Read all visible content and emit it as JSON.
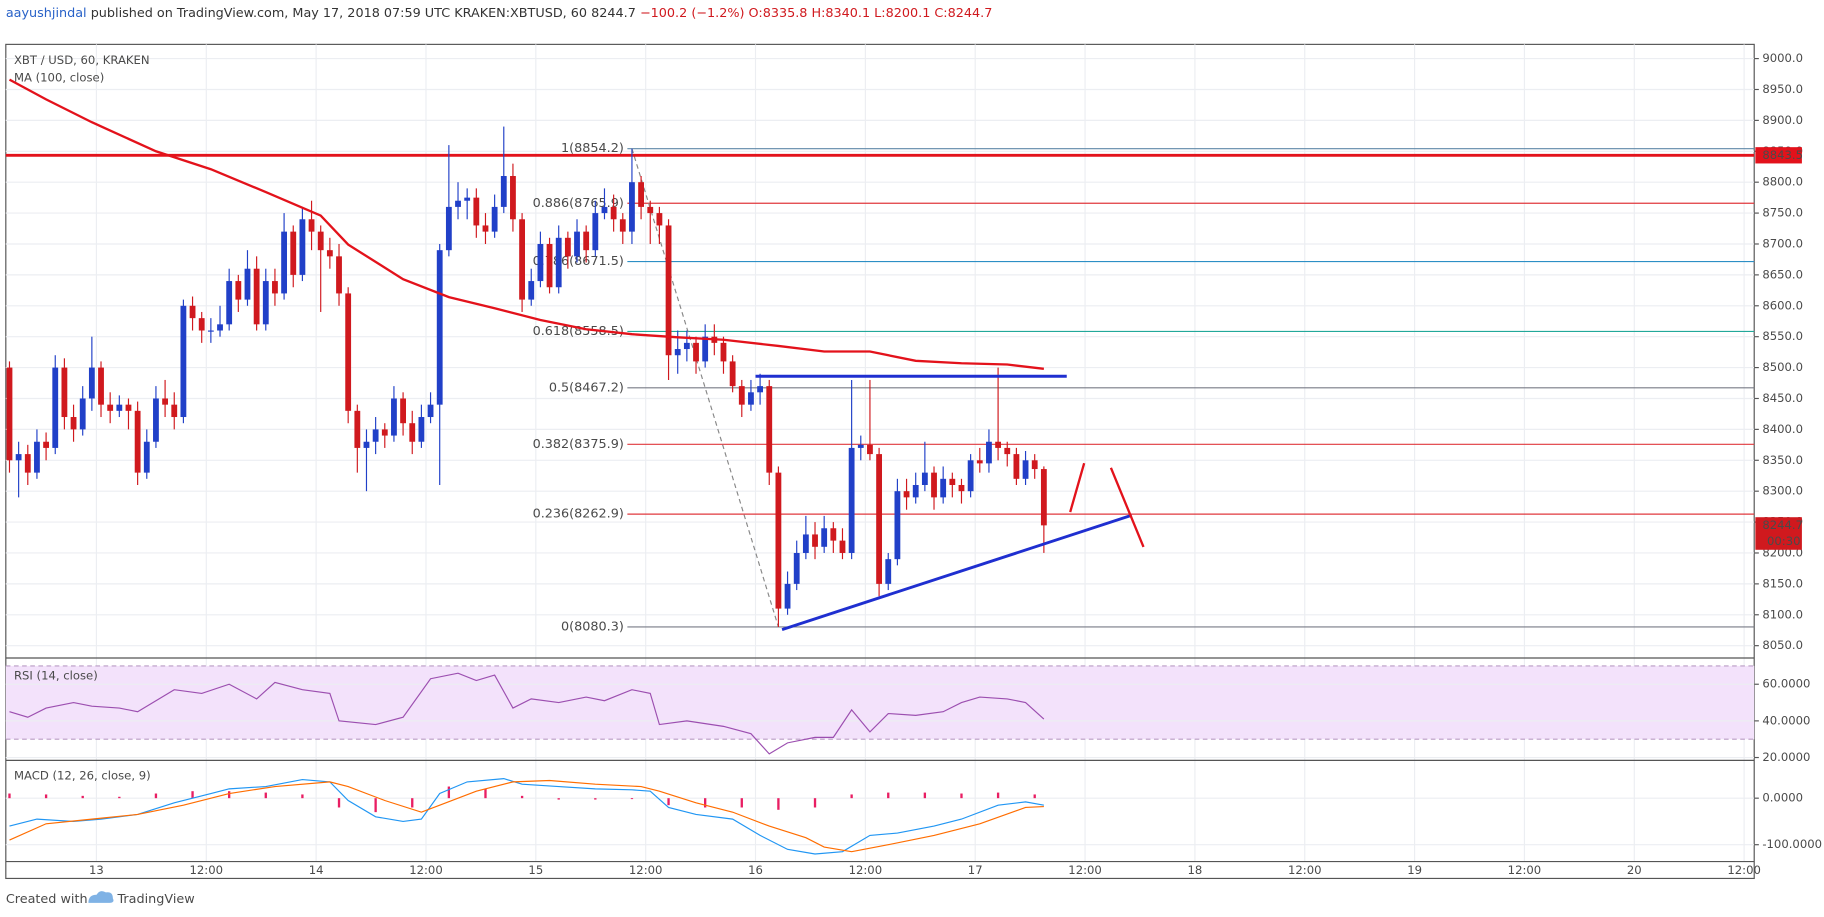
{
  "header": {
    "author": "aayushjindal",
    "published": "published on TradingView.com, May 17, 2018 07:59 UTC",
    "symbol": "KRAKEN:XBTUSD, 60",
    "last": "8244.7",
    "change": "−100.2 (−1.2%)",
    "ohlc": "O:8335.8 H:8340.1 L:8200.1 C:8244.7"
  },
  "footer": {
    "created": "Created with",
    "brand": "TradingView"
  },
  "chart_data": {
    "type": "candlestick",
    "title": "XBT / USD, 60, KRAKEN",
    "colors": {
      "up": "#2140c8",
      "down": "#d0191e"
    },
    "ohlc": [
      [
        8500,
        8510,
        8330,
        8350
      ],
      [
        8350,
        8380,
        8290,
        8360
      ],
      [
        8360,
        8375,
        8310,
        8330
      ],
      [
        8330,
        8400,
        8320,
        8380
      ],
      [
        8380,
        8395,
        8350,
        8370
      ],
      [
        8370,
        8520,
        8360,
        8500
      ],
      [
        8500,
        8515,
        8400,
        8420
      ],
      [
        8420,
        8440,
        8380,
        8400
      ],
      [
        8400,
        8470,
        8390,
        8450
      ],
      [
        8450,
        8550,
        8430,
        8500
      ],
      [
        8500,
        8510,
        8420,
        8440
      ],
      [
        8440,
        8460,
        8410,
        8430
      ],
      [
        8430,
        8455,
        8420,
        8440
      ],
      [
        8440,
        8450,
        8400,
        8430
      ],
      [
        8430,
        8445,
        8310,
        8330
      ],
      [
        8330,
        8400,
        8320,
        8380
      ],
      [
        8380,
        8470,
        8370,
        8450
      ],
      [
        8450,
        8480,
        8420,
        8440
      ],
      [
        8440,
        8460,
        8400,
        8420
      ],
      [
        8420,
        8610,
        8410,
        8600
      ],
      [
        8600,
        8615,
        8560,
        8580
      ],
      [
        8580,
        8590,
        8540,
        8560
      ],
      [
        8560,
        8580,
        8540,
        8560
      ],
      [
        8560,
        8600,
        8550,
        8570
      ],
      [
        8570,
        8660,
        8560,
        8640
      ],
      [
        8640,
        8650,
        8590,
        8610
      ],
      [
        8610,
        8690,
        8600,
        8660
      ],
      [
        8660,
        8680,
        8560,
        8570
      ],
      [
        8570,
        8660,
        8560,
        8640
      ],
      [
        8640,
        8660,
        8600,
        8620
      ],
      [
        8620,
        8750,
        8610,
        8720
      ],
      [
        8720,
        8730,
        8630,
        8650
      ],
      [
        8650,
        8760,
        8640,
        8740
      ],
      [
        8740,
        8770,
        8690,
        8720
      ],
      [
        8720,
        8730,
        8590,
        8690
      ],
      [
        8690,
        8710,
        8660,
        8680
      ],
      [
        8680,
        8700,
        8600,
        8620
      ],
      [
        8620,
        8630,
        8410,
        8430
      ],
      [
        8430,
        8440,
        8330,
        8370
      ],
      [
        8370,
        8400,
        8300,
        8380
      ],
      [
        8380,
        8420,
        8360,
        8400
      ],
      [
        8400,
        8410,
        8370,
        8390
      ],
      [
        8390,
        8470,
        8380,
        8450
      ],
      [
        8450,
        8460,
        8390,
        8410
      ],
      [
        8410,
        8430,
        8360,
        8380
      ],
      [
        8380,
        8440,
        8370,
        8420
      ],
      [
        8420,
        8460,
        8410,
        8440
      ],
      [
        8440,
        8700,
        8310,
        8690
      ],
      [
        8690,
        8860,
        8680,
        8760
      ],
      [
        8760,
        8800,
        8740,
        8770
      ],
      [
        8770,
        8790,
        8740,
        8775
      ],
      [
        8775,
        8790,
        8710,
        8730
      ],
      [
        8730,
        8750,
        8700,
        8720
      ],
      [
        8720,
        8780,
        8710,
        8760
      ],
      [
        8760,
        8890,
        8750,
        8810
      ],
      [
        8810,
        8830,
        8720,
        8740
      ],
      [
        8740,
        8750,
        8590,
        8610
      ],
      [
        8610,
        8660,
        8600,
        8640
      ],
      [
        8640,
        8720,
        8630,
        8700
      ],
      [
        8700,
        8710,
        8620,
        8630
      ],
      [
        8630,
        8730,
        8620,
        8710
      ],
      [
        8710,
        8720,
        8660,
        8680
      ],
      [
        8680,
        8740,
        8670,
        8720
      ],
      [
        8720,
        8730,
        8670,
        8690
      ],
      [
        8690,
        8770,
        8680,
        8750
      ],
      [
        8750,
        8790,
        8740,
        8760
      ],
      [
        8760,
        8780,
        8720,
        8740
      ],
      [
        8740,
        8750,
        8700,
        8720
      ],
      [
        8720,
        8854.2,
        8700,
        8800
      ],
      [
        8800,
        8810,
        8740,
        8760
      ],
      [
        8760,
        8770,
        8700,
        8750
      ],
      [
        8750,
        8760,
        8700,
        8730
      ],
      [
        8730,
        8740,
        8480,
        8520
      ],
      [
        8520,
        8560,
        8490,
        8530
      ],
      [
        8530,
        8560,
        8510,
        8540
      ],
      [
        8540,
        8550,
        8490,
        8510
      ],
      [
        8510,
        8570,
        8500,
        8550
      ],
      [
        8550,
        8570,
        8520,
        8540
      ],
      [
        8540,
        8550,
        8490,
        8510
      ],
      [
        8510,
        8520,
        8460,
        8470
      ],
      [
        8470,
        8480,
        8420,
        8440
      ],
      [
        8440,
        8480,
        8430,
        8460
      ],
      [
        8460,
        8490,
        8440,
        8470
      ],
      [
        8470,
        8480,
        8310,
        8330
      ],
      [
        8330,
        8340,
        8080.3,
        8110
      ],
      [
        8110,
        8170,
        8100,
        8150
      ],
      [
        8150,
        8220,
        8140,
        8200
      ],
      [
        8200,
        8260,
        8190,
        8230
      ],
      [
        8230,
        8250,
        8190,
        8210
      ],
      [
        8210,
        8260,
        8200,
        8240
      ],
      [
        8240,
        8250,
        8200,
        8220
      ],
      [
        8220,
        8240,
        8190,
        8200
      ],
      [
        8200,
        8480,
        8190,
        8370
      ],
      [
        8370,
        8390,
        8350,
        8375
      ],
      [
        8375,
        8480,
        8350,
        8360
      ],
      [
        8360,
        8370,
        8130,
        8150
      ],
      [
        8150,
        8200,
        8140,
        8190
      ],
      [
        8190,
        8320,
        8180,
        8300
      ],
      [
        8300,
        8320,
        8270,
        8290
      ],
      [
        8290,
        8330,
        8280,
        8310
      ],
      [
        8310,
        8380,
        8300,
        8330
      ],
      [
        8330,
        8340,
        8270,
        8290
      ],
      [
        8290,
        8340,
        8280,
        8320
      ],
      [
        8320,
        8330,
        8290,
        8310
      ],
      [
        8310,
        8320,
        8280,
        8300
      ],
      [
        8300,
        8360,
        8290,
        8350
      ],
      [
        8350,
        8370,
        8330,
        8345
      ],
      [
        8345,
        8400,
        8330,
        8380
      ],
      [
        8380,
        8500,
        8350,
        8370
      ],
      [
        8370,
        8380,
        8340,
        8360
      ],
      [
        8360,
        8370,
        8310,
        8320
      ],
      [
        8320,
        8365,
        8310,
        8350
      ],
      [
        8350,
        8360,
        8320,
        8335.8
      ],
      [
        8335.8,
        8340.1,
        8200.1,
        8244.7
      ]
    ],
    "xlim": [
      -0.4,
      190.6
    ],
    "xticks": [
      {
        "value": 9.5,
        "label": "13"
      },
      {
        "value": 21.5,
        "label": "12:00"
      },
      {
        "value": 33.5,
        "label": "14"
      },
      {
        "value": 45.5,
        "label": "12:00"
      },
      {
        "value": 57.5,
        "label": "15"
      },
      {
        "value": 69.5,
        "label": "12:00"
      },
      {
        "value": 81.5,
        "label": "16"
      },
      {
        "value": 93.5,
        "label": "12:00"
      },
      {
        "value": 105.5,
        "label": "17"
      },
      {
        "value": 117.5,
        "label": "12:00"
      },
      {
        "value": 129.5,
        "label": "18"
      },
      {
        "value": 141.5,
        "label": "12:00"
      },
      {
        "value": 153.5,
        "label": "19"
      },
      {
        "value": 165.5,
        "label": "12:00"
      },
      {
        "value": 177.5,
        "label": "20"
      },
      {
        "value": 189.5,
        "label": "12:00"
      }
    ],
    "ylim": [
      8031,
      9023
    ],
    "yticks": [
      {
        "value": 8050,
        "label": "8050.0"
      },
      {
        "value": 8100,
        "label": "8100.0"
      },
      {
        "value": 8150,
        "label": "8150.0"
      },
      {
        "value": 8200,
        "label": "8200.0"
      },
      {
        "value": 8250,
        "label": "8250.0"
      },
      {
        "value": 8300,
        "label": "8300.0"
      },
      {
        "value": 8350,
        "label": "8350.0"
      },
      {
        "value": 8400,
        "label": "8400.0"
      },
      {
        "value": 8450,
        "label": "8450.0"
      },
      {
        "value": 8500,
        "label": "8500.0"
      },
      {
        "value": 8550,
        "label": "8550.0"
      },
      {
        "value": 8600,
        "label": "8600.0"
      },
      {
        "value": 8650,
        "label": "8650.0"
      },
      {
        "value": 8700,
        "label": "8700.0"
      },
      {
        "value": 8750,
        "label": "8750.0"
      },
      {
        "value": 8800,
        "label": "8800.0"
      },
      {
        "value": 8850,
        "label": "8850.0"
      },
      {
        "value": 8900,
        "label": "8900.0"
      },
      {
        "value": 8950,
        "label": "8950.0"
      },
      {
        "value": 9000,
        "label": "9000.0"
      }
    ],
    "grid": true,
    "last_price": 8244.7,
    "countdown": "00:30",
    "resistance": {
      "value": 8843.5,
      "color": "#e3121b"
    },
    "ma": {
      "name": "MA (100, close)",
      "color": "#e3121b",
      "x": [
        0,
        4,
        9,
        16,
        22,
        28,
        34,
        37,
        43,
        48,
        53,
        58,
        63,
        68,
        73,
        78,
        84,
        89,
        94,
        99,
        104,
        109,
        113
      ],
      "values": [
        8966,
        8934,
        8897,
        8850,
        8821,
        8784,
        8746,
        8699,
        8643,
        8614,
        8596,
        8577,
        8562,
        8554,
        8549,
        8545,
        8535,
        8526,
        8526,
        8511,
        8507,
        8505,
        8498
      ]
    },
    "fib": [
      {
        "label": "1(8854.2)",
        "value": 8854.2,
        "color": "#5f88a8"
      },
      {
        "label": "0.886(8765.9)",
        "value": 8765.9,
        "color": "#e0393e"
      },
      {
        "label": "0.786(8671.5)",
        "value": 8671.5,
        "color": "#2d8fc5"
      },
      {
        "label": "0.618(8558.5)",
        "value": 8558.5,
        "color": "#22a89a"
      },
      {
        "label": "0.5(8467.2)",
        "value": 8467.2,
        "color": "#787b86"
      },
      {
        "label": "0.382(8375.9)",
        "value": 8375.9,
        "color": "#e0393e"
      },
      {
        "label": "0.236(8262.9)",
        "value": 8262.9,
        "color": "#e0393e"
      },
      {
        "label": "0(8080.3)",
        "value": 8080.3,
        "color": "#787b86"
      }
    ],
    "trendlines": [
      {
        "color": "#1f2fd0",
        "x": [
          81.5,
          115.5
        ],
        "values": [
          8486,
          8486
        ]
      },
      {
        "color": "#1f2fd0",
        "x": [
          84.4,
          122.6
        ],
        "values": [
          8076,
          8261
        ]
      }
    ],
    "rsi": {
      "name": "RSI (14, close)",
      "color": "#9c4fb0",
      "band": [
        30,
        70
      ],
      "ylim": [
        19.4,
        74
      ],
      "yticks": [
        {
          "value": 20,
          "label": "20.0000"
        },
        {
          "value": 40,
          "label": "40.0000"
        },
        {
          "value": 60,
          "label": "60.0000"
        }
      ],
      "x": [
        0,
        2,
        4,
        7,
        9,
        12,
        14,
        18,
        21,
        24,
        27,
        29,
        32,
        35,
        36,
        40,
        43,
        46,
        49,
        51,
        53,
        55,
        57,
        60,
        63,
        65,
        68,
        70,
        71,
        74,
        78,
        81,
        83,
        85,
        88,
        90,
        92,
        94,
        96,
        99,
        102,
        104,
        106,
        109,
        111,
        113
      ],
      "values": [
        45,
        42,
        47,
        50,
        48,
        47,
        45,
        57,
        55,
        60,
        52,
        61,
        57,
        55,
        40,
        38,
        42,
        63,
        66,
        62,
        65,
        47,
        52,
        50,
        53,
        51,
        57,
        55,
        38,
        40,
        37,
        33,
        22,
        28,
        31,
        31,
        46,
        34,
        44,
        43,
        45,
        50,
        53,
        52,
        50,
        41
      ]
    },
    "macd": {
      "name": "MACD (12, 26, close, 9)",
      "ylim": [
        -135,
        80
      ],
      "yticks": [
        {
          "value": -100,
          "label": "-100.0000"
        },
        {
          "value": 0,
          "label": "0.0000"
        }
      ],
      "macd": {
        "color": "#2196f3",
        "x": [
          0,
          3,
          7,
          10,
          14,
          18,
          22,
          24,
          28,
          32,
          35,
          37,
          40,
          43,
          45,
          47,
          50,
          54,
          56,
          60,
          64,
          68,
          70,
          72,
          75,
          79,
          82,
          85,
          88,
          91,
          94,
          97,
          101,
          104,
          108,
          111,
          113
        ],
        "values": [
          -60,
          -45,
          -50,
          -45,
          -35,
          -10,
          10,
          20,
          25,
          40,
          35,
          -5,
          -40,
          -50,
          -45,
          10,
          35,
          42,
          30,
          25,
          20,
          18,
          15,
          -20,
          -35,
          -45,
          -80,
          -110,
          -120,
          -115,
          -80,
          -75,
          -60,
          -45,
          -15,
          -8,
          -15
        ]
      },
      "signal": {
        "color": "#ff6d00",
        "x": [
          0,
          4,
          9,
          14,
          19,
          24,
          29,
          35,
          37,
          41,
          45,
          47,
          51,
          55,
          59,
          64,
          69,
          71,
          75,
          79,
          83,
          87,
          89,
          92,
          96,
          101,
          106,
          111,
          113
        ],
        "values": [
          -90,
          -55,
          -45,
          -35,
          -15,
          10,
          25,
          35,
          25,
          -5,
          -30,
          -15,
          15,
          35,
          38,
          30,
          25,
          15,
          -10,
          -30,
          -60,
          -85,
          -105,
          -115,
          -100,
          -80,
          -55,
          -20,
          -18
        ]
      },
      "histogram": {
        "color": "#e91e63",
        "x": [
          0,
          4,
          8,
          12,
          16,
          20,
          24,
          28,
          32,
          36,
          40,
          44,
          48,
          52,
          56,
          60,
          64,
          68,
          72,
          76,
          80,
          84,
          88,
          92,
          96,
          100,
          104,
          108,
          112
        ],
        "values": [
          10,
          8,
          5,
          3,
          10,
          15,
          15,
          12,
          8,
          -20,
          -30,
          -20,
          25,
          20,
          5,
          -3,
          -3,
          -2,
          -15,
          -20,
          -20,
          -25,
          -20,
          8,
          12,
          12,
          10,
          12,
          8
        ]
      }
    }
  }
}
